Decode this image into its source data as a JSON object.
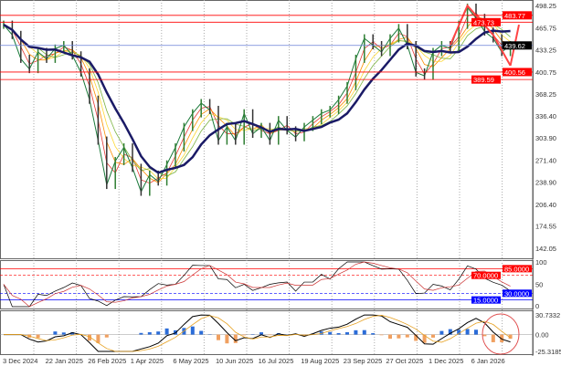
{
  "chart_data": {
    "type": "line",
    "price_panel": {
      "y_ticks": [
        498.25,
        465.75,
        433.25,
        400.75,
        368.25,
        336.4,
        303.9,
        271.4,
        238.9,
        206.4,
        174.55,
        142.05
      ],
      "ylim": [
        142.05,
        498.25
      ],
      "levels": [
        {
          "value": 483.77,
          "label": "483.77",
          "color": "#ff0000"
        },
        {
          "value": 473.73,
          "label": "473.73",
          "color": "#ff0000"
        },
        {
          "value": 439.62,
          "label": "439.62",
          "color": "#000000"
        },
        {
          "value": 400.56,
          "label": "400.56",
          "color": "#ff0000"
        },
        {
          "value": 389.59,
          "label": "389.59",
          "color": "#ff0000"
        }
      ],
      "weekly_close": [
        470,
        455,
        420,
        405,
        430,
        420,
        435,
        440,
        425,
        400,
        360,
        300,
        235,
        270,
        290,
        260,
        225,
        250,
        240,
        265,
        290,
        320,
        340,
        355,
        345,
        300,
        320,
        300,
        340,
        310,
        320,
        300,
        330,
        315,
        305,
        320,
        330,
        340,
        345,
        360,
        380,
        420,
        450,
        440,
        430,
        450,
        465,
        440,
        400,
        395,
        430,
        440,
        435,
        470,
        495,
        480,
        460,
        450,
        430,
        440
      ],
      "ma_color": "#1a1a66",
      "ribbon_colors": [
        "#e53935",
        "#fb8c00",
        "#fdd835",
        "#7cb342"
      ]
    },
    "rsi_panel": {
      "y_ticks": [
        "100",
        "50",
        "0"
      ],
      "levels": [
        {
          "value": 85,
          "label": "85.0000",
          "color": "#ff0000"
        },
        {
          "value": 70,
          "label": "70.0000",
          "color": "#ff0000"
        },
        {
          "value": 30,
          "label": "30.0000",
          "color": "#0000ff"
        },
        {
          "value": 15,
          "label": "15.0000",
          "color": "#0000ff"
        }
      ]
    },
    "macd_panel": {
      "y_ticks": [
        "30.7332",
        "0.00",
        "-25.3185"
      ],
      "ylim": [
        -25.3185,
        30.7332
      ]
    },
    "x_ticks": [
      "3 Dec 2024",
      "22 Jan 2025",
      "26 Feb 2025",
      "1 Apr 2025",
      "6 May 2025",
      "10 Jun 2025",
      "16 Jul 2025",
      "19 Aug 2025",
      "23 Sep 2025",
      "27 Oct 2025",
      "1 Dec 2025",
      "6 Jan 2026"
    ],
    "grid": true
  }
}
